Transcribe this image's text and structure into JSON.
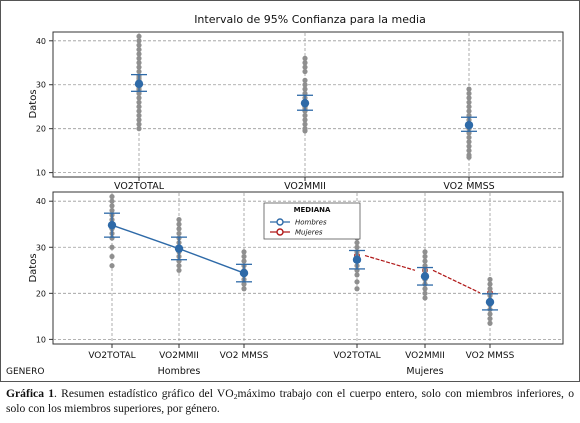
{
  "colors": {
    "points": "#8f8f8f",
    "mean_marker": "#2e6aa8",
    "ci_bar": "#2e6aa8",
    "hombres_line": "#2e6aa8",
    "mujeres_line": "#b01818",
    "grid": "#9a9a9a",
    "frame": "#333333"
  },
  "chart_data": [
    {
      "type": "scatter",
      "title": "Intervalo de 95% Confianza para la media",
      "ylabel": "Datos",
      "ylim": [
        9,
        42
      ],
      "yticks": [
        10,
        20,
        30,
        40
      ],
      "grid": true,
      "categories": [
        "VO2TOTAL",
        "VO2MMII",
        "VO2 MMSS"
      ],
      "means": [
        30.2,
        25.8,
        20.8
      ],
      "ci": [
        [
          28.5,
          32.3
        ],
        [
          24.2,
          27.6
        ],
        [
          19.4,
          22.6
        ]
      ],
      "points": [
        [
          20,
          21,
          22,
          23,
          24,
          25,
          26,
          27,
          28,
          28.5,
          29,
          29.5,
          30,
          31,
          31.5,
          32,
          33,
          34,
          35,
          36,
          37,
          38,
          39,
          40,
          41
        ],
        [
          19.5,
          20,
          21,
          22,
          23,
          24,
          24.5,
          25,
          25.5,
          26,
          27,
          28,
          29,
          30,
          31,
          33,
          34,
          35,
          36
        ],
        [
          13.5,
          14,
          15,
          16,
          17,
          18,
          19,
          20,
          20.5,
          21,
          22,
          23,
          24,
          25,
          26,
          27,
          28,
          29
        ]
      ]
    },
    {
      "type": "scatter",
      "ylabel": "Datos",
      "ylim": [
        9,
        42
      ],
      "yticks": [
        10,
        20,
        30,
        40
      ],
      "grid": true,
      "factor_label": "GENERO",
      "groups": [
        "Hombres",
        "Mujeres"
      ],
      "categories": [
        {
          "label": "VO2TOTAL",
          "group": "Hombres"
        },
        {
          "label": "VO2MMII",
          "group": "Hombres"
        },
        {
          "label": "VO2 MMSS",
          "group": "Hombres"
        },
        {
          "label": "VO2TOTAL",
          "group": "Mujeres"
        },
        {
          "label": "VO2MMII",
          "group": "Mujeres"
        },
        {
          "label": "VO2 MMSS",
          "group": "Mujeres"
        }
      ],
      "means": [
        34.8,
        29.7,
        24.4,
        27.3,
        23.7,
        18.1
      ],
      "ci": [
        [
          32.2,
          37.4
        ],
        [
          27.3,
          32.2
        ],
        [
          22.5,
          26.3
        ],
        [
          25.3,
          29.3
        ],
        [
          21.8,
          25.6
        ],
        [
          16.4,
          19.9
        ]
      ],
      "points": [
        [
          26,
          28,
          30,
          32,
          33,
          34,
          35,
          36,
          37,
          38,
          39,
          40,
          41
        ],
        [
          25,
          26,
          27,
          28,
          29,
          30,
          31,
          32,
          33,
          34,
          35,
          36
        ],
        [
          21,
          22,
          23,
          24,
          25,
          26,
          27,
          28,
          29
        ],
        [
          21,
          22.5,
          24,
          25,
          26,
          27,
          28,
          29,
          30,
          31,
          32,
          33.5
        ],
        [
          19,
          20,
          21,
          22,
          23,
          24,
          25,
          26,
          27,
          28,
          29
        ],
        [
          13.5,
          14.5,
          15.5,
          16.5,
          17.5,
          18.5,
          19.5,
          20,
          21,
          22,
          23
        ]
      ],
      "median_lines": [
        {
          "name": "Hombres",
          "values": [
            34.8,
            29.7,
            24.4
          ]
        },
        {
          "name": "Mujeres",
          "values": [
            28.2,
            25.0,
            20.1
          ]
        }
      ],
      "legend": {
        "title": "MEDIANA",
        "entries": [
          "Hombres",
          "Mujeres"
        ],
        "placement": "top-center"
      }
    }
  ],
  "caption": {
    "label": "Gráfica 1",
    "text_before_sub": ". Resumen estadístico gráfico del VO",
    "subscript": "2",
    "text_after_sub": "máximo trabajo con el cuerpo entero, solo con miembros inferiores, o solo con los miembros superiores, por género."
  }
}
